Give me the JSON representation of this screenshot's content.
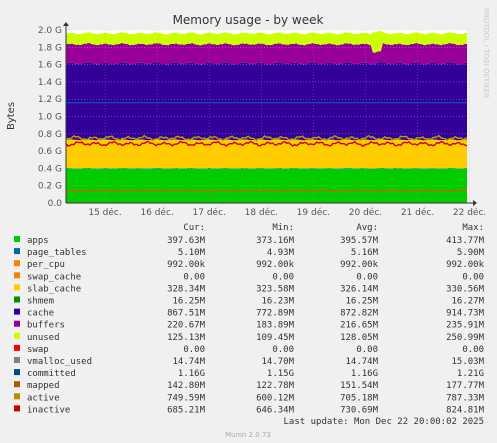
{
  "chart_data": {
    "type": "area",
    "title": "Memory usage - by week",
    "ylabel": "Bytes",
    "side_label": "RRDTOOL / TOBI OETIKER",
    "ylim": [
      0,
      2.0
    ],
    "yticks": [
      "0.0",
      "0.2 G",
      "0.4 G",
      "0.6 G",
      "0.8 G",
      "1.0 G",
      "1.2 G",
      "1.4 G",
      "1.6 G",
      "1.8 G",
      "2.0 G"
    ],
    "xticks": [
      "15 déc.",
      "16 déc.",
      "17 déc.",
      "18 déc.",
      "19 déc.",
      "20 déc.",
      "21 déc.",
      "22 déc."
    ],
    "grid": true,
    "stack_gb": [
      {
        "name": "apps",
        "color": "#00cc00",
        "value": 0.397
      },
      {
        "name": "page_tables",
        "color": "#0066b3",
        "value": 0.005
      },
      {
        "name": "per_cpu",
        "color": "#ff8000",
        "value": 0.001
      },
      {
        "name": "swap_cache",
        "color": "#ffcc00",
        "value": 0.0
      },
      {
        "name": "slab_cache",
        "color": "#ffcc00",
        "value": 0.328
      },
      {
        "name": "shmem",
        "color": "#330099",
        "value": 0.016
      },
      {
        "name": "cache",
        "color": "#330099",
        "value": 0.868
      },
      {
        "name": "buffers",
        "color": "#990099",
        "value": 0.221
      },
      {
        "name": "unused",
        "color": "#ccff00",
        "value": 0.125
      }
    ],
    "line_series": [
      {
        "name": "committed",
        "color": "#0066b3",
        "value": 1.16
      },
      {
        "name": "mapped",
        "color": "#cc6600",
        "value": 0.143
      },
      {
        "name": "active",
        "color": "#b8a000",
        "value": 0.75
      },
      {
        "name": "inactive",
        "color": "#cc0000",
        "value": 0.685
      }
    ]
  },
  "legend": {
    "headers": {
      "cur": "Cur:",
      "min": "Min:",
      "avg": "Avg:",
      "max": "Max:"
    },
    "rows": [
      {
        "name": "apps",
        "color": "#00cc00",
        "cur": "397.63M",
        "min": "373.16M",
        "avg": "395.57M",
        "max": "413.77M"
      },
      {
        "name": "page_tables",
        "color": "#0066b3",
        "cur": "5.10M",
        "min": "4.93M",
        "avg": "5.16M",
        "max": "5.90M"
      },
      {
        "name": "per_cpu",
        "color": "#ff8000",
        "cur": "992.00k",
        "min": "992.00k",
        "avg": "992.00k",
        "max": "992.00k"
      },
      {
        "name": "swap_cache",
        "color": "#ff8000",
        "cur": "0.00",
        "min": "0.00",
        "avg": "0.00",
        "max": "0.00"
      },
      {
        "name": "slab_cache",
        "color": "#ffcc00",
        "cur": "328.34M",
        "min": "323.58M",
        "avg": "326.14M",
        "max": "330.56M"
      },
      {
        "name": "shmem",
        "color": "#008f00",
        "cur": "16.25M",
        "min": "16.23M",
        "avg": "16.25M",
        "max": "16.27M"
      },
      {
        "name": "cache",
        "color": "#330099",
        "cur": "867.51M",
        "min": "772.89M",
        "avg": "872.82M",
        "max": "914.73M"
      },
      {
        "name": "buffers",
        "color": "#990099",
        "cur": "220.67M",
        "min": "183.89M",
        "avg": "216.65M",
        "max": "235.91M"
      },
      {
        "name": "unused",
        "color": "#ccff00",
        "cur": "125.13M",
        "min": "109.45M",
        "avg": "128.05M",
        "max": "250.99M"
      },
      {
        "name": "swap",
        "color": "#ff0000",
        "cur": "0.00",
        "min": "0.00",
        "avg": "0.00",
        "max": "0.00"
      },
      {
        "name": "vmalloc_used",
        "color": "#808080",
        "cur": "14.74M",
        "min": "14.70M",
        "avg": "14.74M",
        "max": "15.03M"
      },
      {
        "name": "committed",
        "color": "#004d86",
        "cur": "1.16G",
        "min": "1.15G",
        "avg": "1.16G",
        "max": "1.21G"
      },
      {
        "name": "mapped",
        "color": "#b35a00",
        "cur": "142.80M",
        "min": "122.78M",
        "avg": "151.54M",
        "max": "177.77M"
      },
      {
        "name": "active",
        "color": "#b38f00",
        "cur": "749.59M",
        "min": "600.12M",
        "avg": "705.18M",
        "max": "787.33M"
      },
      {
        "name": "inactive",
        "color": "#cc0000",
        "cur": "685.21M",
        "min": "646.34M",
        "avg": "730.69M",
        "max": "824.81M"
      }
    ]
  },
  "footer": {
    "last_update": "Last update: Mon Dec 22 20:00:02 2025",
    "version": "Munin 2.0.73"
  }
}
